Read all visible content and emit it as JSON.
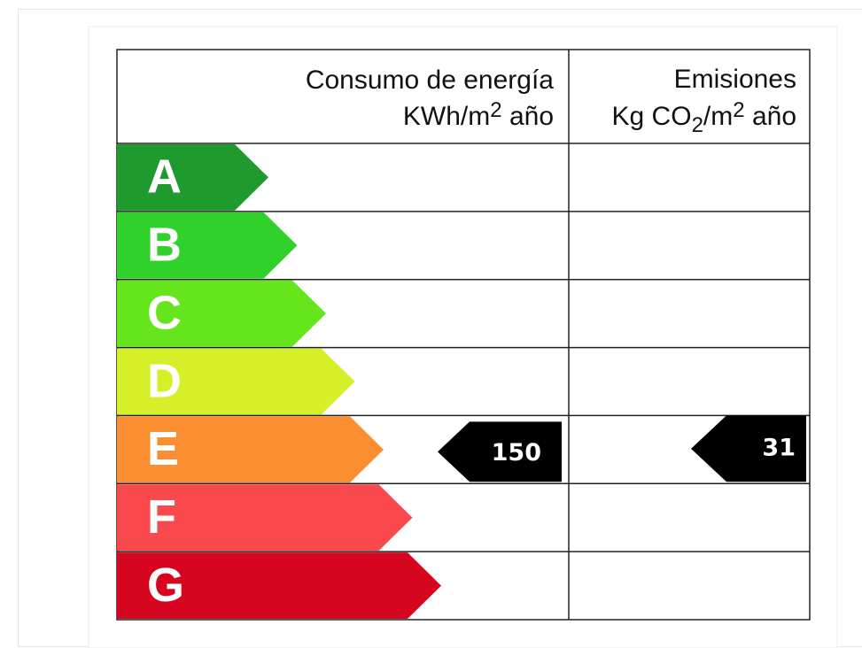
{
  "table": {
    "columns": [
      {
        "title": "Consumo de energía",
        "unit": [
          "KWh/m",
          "2",
          " año"
        ]
      },
      {
        "title": "Emisiones",
        "unit": [
          "Kg CO",
          "2",
          "/m",
          "2",
          " año"
        ]
      }
    ],
    "ratings": [
      {
        "label": "A",
        "color": "#1f9a2f"
      },
      {
        "label": "B",
        "color": "#30d12b"
      },
      {
        "label": "C",
        "color": "#64e51c"
      },
      {
        "label": "D",
        "color": "#d5ef28"
      },
      {
        "label": "E",
        "color": "#fb8e31",
        "energy": 150,
        "emissions": 31
      },
      {
        "label": "F",
        "color": "#f9494d"
      },
      {
        "label": "G",
        "color": "#d6061f"
      }
    ]
  }
}
